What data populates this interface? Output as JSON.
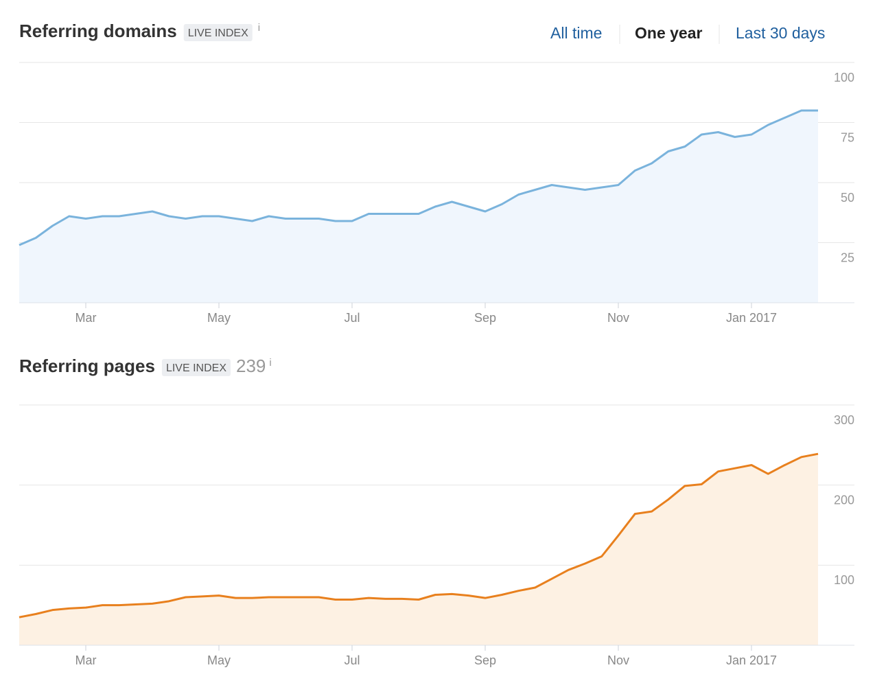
{
  "tabs": [
    "All time",
    "One year",
    "Last 30 days"
  ],
  "chart_data": [
    {
      "type": "line",
      "title": "Referring domains",
      "badge": "LIVE INDEX",
      "info": "i",
      "categories": [
        null,
        null,
        null,
        null,
        "Mar",
        null,
        null,
        null,
        null,
        null,
        null,
        null,
        "May",
        null,
        null,
        null,
        null,
        null,
        null,
        null,
        "Jul",
        null,
        null,
        null,
        null,
        null,
        null,
        null,
        "Sep",
        null,
        null,
        null,
        null,
        null,
        null,
        null,
        "Nov",
        null,
        null,
        null,
        null,
        null,
        null,
        null,
        "Jan 2017",
        null,
        null,
        null,
        null
      ],
      "values": [
        24,
        27,
        32,
        36,
        35,
        36,
        36,
        37,
        38,
        36,
        35,
        36,
        36,
        35,
        34,
        36,
        35,
        35,
        35,
        34,
        34,
        37,
        37,
        37,
        37,
        40,
        42,
        40,
        38,
        41,
        45,
        47,
        49,
        48,
        47,
        48,
        49,
        55,
        58,
        63,
        65,
        70,
        71,
        69,
        70,
        74,
        77,
        80,
        80
      ],
      "color": "#7ab3dc",
      "fill": "#f0f6fd",
      "ylim": [
        0,
        100
      ],
      "yticks": [
        25,
        50,
        75,
        100
      ],
      "grid": true
    },
    {
      "type": "line",
      "title": "Referring pages",
      "badge": "LIVE INDEX",
      "total": 239,
      "info": "i",
      "categories": [
        null,
        null,
        null,
        null,
        "Mar",
        null,
        null,
        null,
        null,
        null,
        null,
        null,
        "May",
        null,
        null,
        null,
        null,
        null,
        null,
        null,
        "Jul",
        null,
        null,
        null,
        null,
        null,
        null,
        null,
        "Sep",
        null,
        null,
        null,
        null,
        null,
        null,
        null,
        "Nov",
        null,
        null,
        null,
        null,
        null,
        null,
        null,
        "Jan 2017",
        null,
        null,
        null,
        null
      ],
      "values": [
        35,
        39,
        44,
        46,
        47,
        50,
        50,
        51,
        52,
        55,
        60,
        61,
        62,
        59,
        59,
        60,
        60,
        60,
        60,
        57,
        57,
        59,
        58,
        58,
        57,
        63,
        64,
        62,
        59,
        63,
        68,
        72,
        83,
        94,
        102,
        111,
        137,
        164,
        167,
        182,
        199,
        201,
        217,
        221,
        225,
        214,
        225,
        235,
        239
      ],
      "color": "#e8801e",
      "fill": "#fdf1e3",
      "ylim": [
        0,
        300
      ],
      "yticks": [
        100,
        200,
        300
      ],
      "grid": true
    }
  ]
}
